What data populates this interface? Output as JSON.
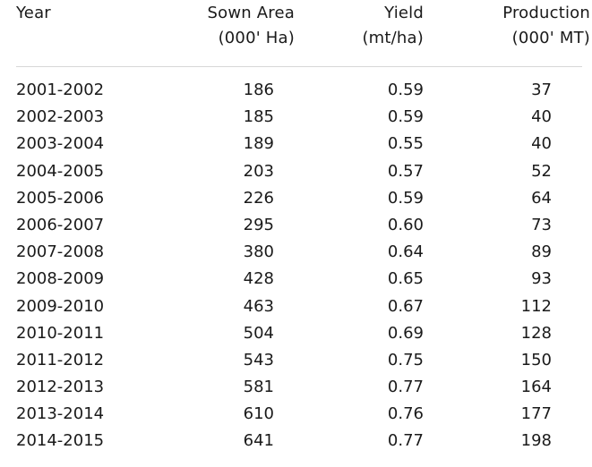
{
  "headers": {
    "year": "Year",
    "sown_area": [
      "Sown Area",
      "(000' Ha)"
    ],
    "yield": [
      "Yield",
      "(mt/ha)"
    ],
    "production": [
      "Production",
      "(000' MT)"
    ]
  },
  "rows": [
    {
      "year": "2001-2002",
      "area": "186",
      "yield": "0.59",
      "production": "37"
    },
    {
      "year": "2002-2003",
      "area": "185",
      "yield": "0.59",
      "production": "40"
    },
    {
      "year": "2003-2004",
      "area": "189",
      "yield": "0.55",
      "production": "40"
    },
    {
      "year": "2004-2005",
      "area": "203",
      "yield": "0.57",
      "production": "52"
    },
    {
      "year": "2005-2006",
      "area": "226",
      "yield": "0.59",
      "production": "64"
    },
    {
      "year": "2006-2007",
      "area": "295",
      "yield": "0.60",
      "production": "73"
    },
    {
      "year": "2007-2008",
      "area": "380",
      "yield": "0.64",
      "production": "89"
    },
    {
      "year": "2008-2009",
      "area": "428",
      "yield": "0.65",
      "production": "93"
    },
    {
      "year": "2009-2010",
      "area": "463",
      "yield": "0.67",
      "production": "112"
    },
    {
      "year": "2010-2011",
      "area": "504",
      "yield": "0.69",
      "production": "128"
    },
    {
      "year": "2011-2012",
      "area": "543",
      "yield": "0.75",
      "production": "150"
    },
    {
      "year": "2012-2013",
      "area": "581",
      "yield": "0.77",
      "production": "164"
    },
    {
      "year": "2013-2014",
      "area": "610",
      "yield": "0.76",
      "production": "177"
    },
    {
      "year": "2014-2015",
      "area": "641",
      "yield": "0.77",
      "production": "198"
    }
  ]
}
